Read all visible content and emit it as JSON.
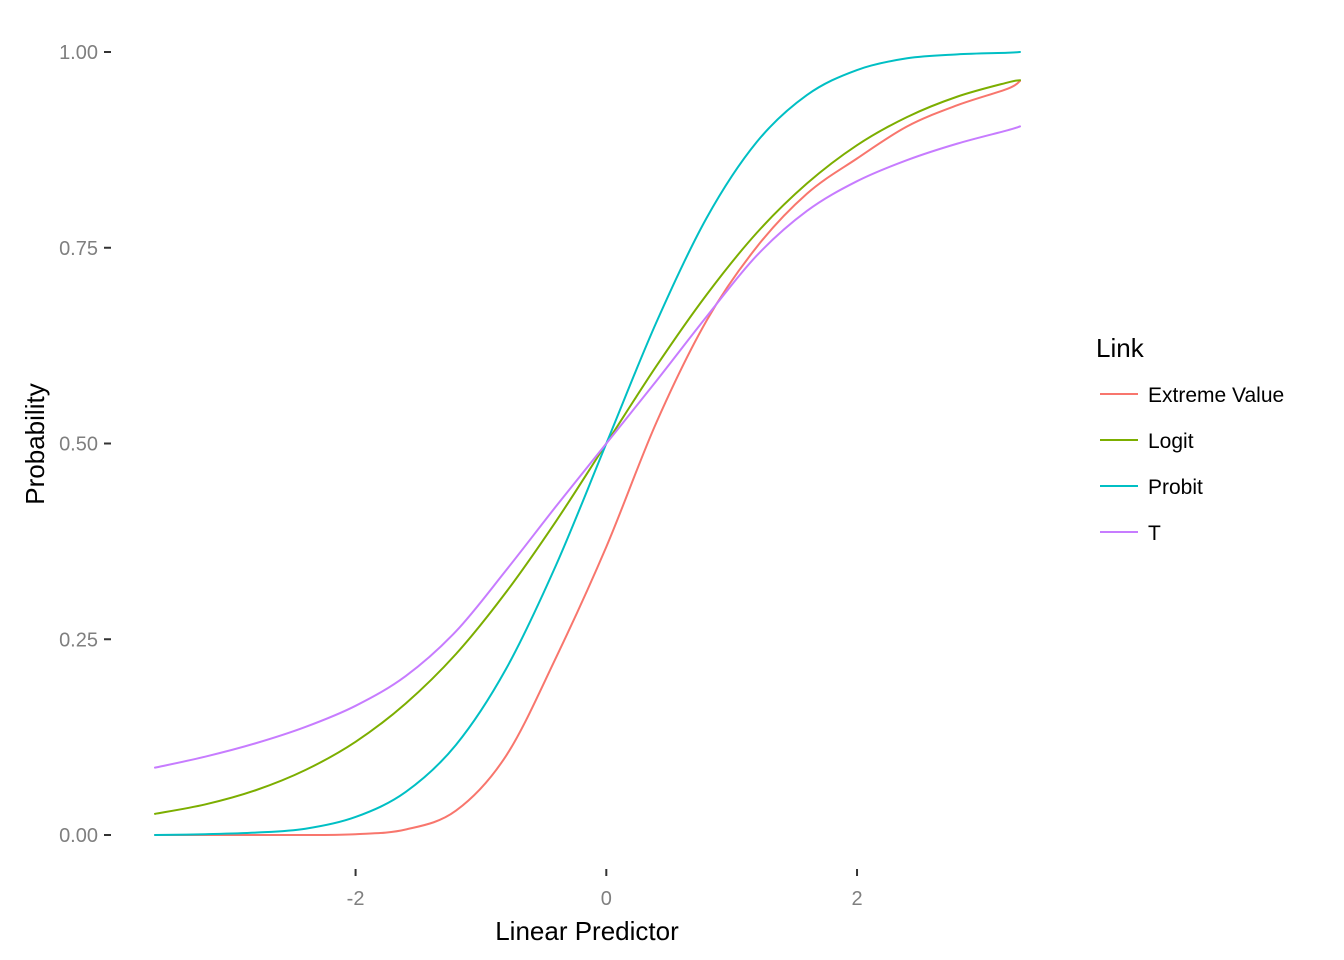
{
  "chart_data": {
    "type": "line",
    "xlabel": "Linear Predictor",
    "ylabel": "Probability",
    "xlim": [
      -3.6,
      3.3
    ],
    "ylim": [
      0,
      1
    ],
    "x_ticks": [
      -2,
      0,
      2
    ],
    "x_tick_labels": [
      "-2",
      "0",
      "2"
    ],
    "y_ticks": [
      0,
      0.25,
      0.5,
      0.75,
      1.0
    ],
    "y_tick_labels": [
      "0.00",
      "0.25",
      "0.50",
      "0.75",
      "1.00"
    ],
    "grid": false,
    "legend": {
      "title": "Link",
      "placement": "right"
    },
    "x": [
      -3.6,
      -3.2,
      -2.8,
      -2.4,
      -2.0,
      -1.6,
      -1.2,
      -0.8,
      -0.4,
      0.0,
      0.4,
      0.8,
      1.2,
      1.6,
      2.0,
      2.4,
      2.8,
      3.2,
      3.3
    ],
    "series": [
      {
        "name": "Extreme Value",
        "color": "#F8766D",
        "values": [
          0.0,
          0.0,
          0.0,
          0.0,
          0.001,
          0.007,
          0.031,
          0.101,
          0.227,
          0.368,
          0.527,
          0.657,
          0.751,
          0.819,
          0.864,
          0.905,
          0.932,
          0.953,
          0.963
        ]
      },
      {
        "name": "Logit",
        "color": "#7CAE00",
        "values": [
          0.027,
          0.039,
          0.057,
          0.083,
          0.119,
          0.168,
          0.231,
          0.31,
          0.401,
          0.5,
          0.599,
          0.69,
          0.769,
          0.832,
          0.881,
          0.917,
          0.943,
          0.961,
          0.964
        ]
      },
      {
        "name": "Probit",
        "color": "#00BFC4",
        "values": [
          0.0,
          0.001,
          0.003,
          0.008,
          0.023,
          0.055,
          0.115,
          0.212,
          0.345,
          0.5,
          0.655,
          0.788,
          0.885,
          0.945,
          0.977,
          0.992,
          0.997,
          0.999,
          1.0
        ]
      },
      {
        "name": "T",
        "color": "#C77CFF",
        "values": [
          0.086,
          0.1,
          0.117,
          0.138,
          0.165,
          0.203,
          0.26,
          0.338,
          0.42,
          0.5,
          0.58,
          0.662,
          0.74,
          0.797,
          0.835,
          0.862,
          0.883,
          0.9,
          0.905
        ]
      }
    ]
  }
}
